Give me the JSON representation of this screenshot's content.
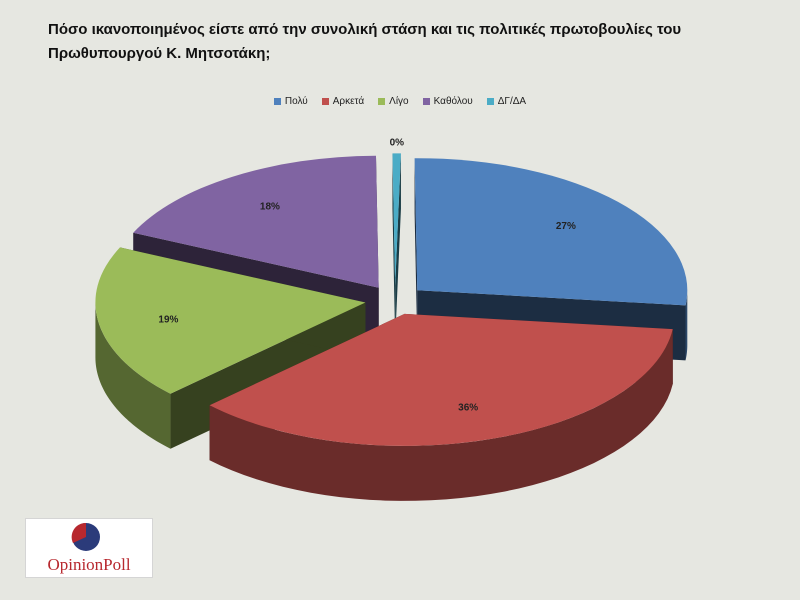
{
  "chart_data": {
    "type": "pie",
    "title": "Πόσο ικανοποιημένος είστε από την συνολική στάση και τις πολιτικές πρωτοβουλίες του Πρωθυπουργού  Κ. Μητσοτάκη;",
    "categories": [
      "Πολύ",
      "Αρκετά",
      "Λίγο",
      "Καθόλου",
      "ΔΓ/ΔΑ"
    ],
    "values": [
      27,
      36,
      19,
      18,
      0
    ],
    "labels": [
      "27%",
      "36%",
      "19%",
      "18%",
      "0%"
    ],
    "colors": [
      "#4f81bd",
      "#c0504d",
      "#9bbb59",
      "#8064a2",
      "#4bacc6"
    ],
    "legend_position": "top",
    "style": "3d-exploded"
  },
  "logo": {
    "text": "OpinionPoll",
    "colors": [
      "#b7282e",
      "#2b3b7a"
    ]
  }
}
